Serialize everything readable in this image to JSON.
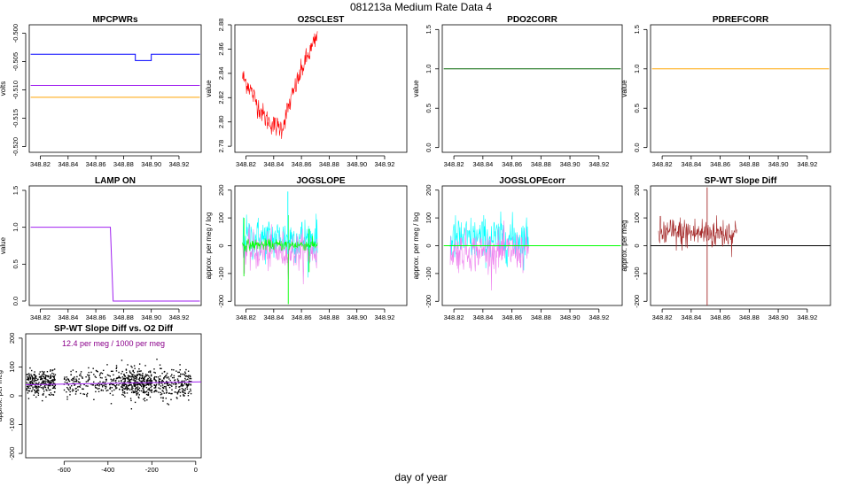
{
  "figure": {
    "title": "081213a   Medium Rate Data 4",
    "xlabel": "day of year"
  },
  "colors": {
    "blue": "#0000ff",
    "purple": "#a020f0",
    "orange": "#ffa500",
    "red": "#ff0000",
    "darkgreen": "#006400",
    "green": "#00ff00",
    "cyan": "#00ffff",
    "violet": "#ee82ee",
    "brown": "#a52a2a",
    "black": "#000000",
    "magenta": "#8b008b"
  },
  "chart_data": [
    {
      "type": "line",
      "title": "MPCPWRs",
      "ylabel": "volts",
      "xlim": [
        348.812,
        348.936
      ],
      "ylim": [
        -0.521,
        -0.4985
      ],
      "xticks": [
        "348.82",
        "348.84",
        "348.86",
        "348.88",
        "348.90",
        "348.92"
      ],
      "yticks": [
        "-0.520",
        "-0.515",
        "-0.510",
        "-0.505",
        "-0.500"
      ],
      "series": [
        {
          "color": "blue",
          "x": [
            348.813,
            348.8885,
            348.8885,
            348.9,
            348.9,
            348.935
          ],
          "y": [
            -0.5037,
            -0.5037,
            -0.5048,
            -0.5048,
            -0.5037,
            -0.5037
          ]
        },
        {
          "color": "purple",
          "x": [
            348.813,
            348.935
          ],
          "y": [
            -0.5092,
            -0.5092
          ]
        },
        {
          "color": "orange",
          "x": [
            348.813,
            348.935
          ],
          "y": [
            -0.5113,
            -0.5113
          ]
        }
      ]
    },
    {
      "type": "line",
      "title": "O2SCLEST",
      "ylabel": "value",
      "xlim": [
        348.812,
        348.936
      ],
      "ylim": [
        2.775,
        2.88
      ],
      "xticks": [
        "348.82",
        "348.84",
        "348.86",
        "348.88",
        "348.90",
        "348.92"
      ],
      "yticks": [
        "2.78",
        "2.80",
        "2.82",
        "2.84",
        "2.86",
        "2.88"
      ],
      "series": [
        {
          "color": "red",
          "noise": 0.0045,
          "x": [
            348.8175,
            348.822,
            348.828,
            348.834,
            348.84,
            348.846,
            348.85,
            348.856,
            348.862,
            348.868,
            348.8715
          ],
          "y": [
            2.837,
            2.83,
            2.815,
            2.803,
            2.797,
            2.795,
            2.81,
            2.83,
            2.848,
            2.862,
            2.87
          ]
        }
      ]
    },
    {
      "type": "line",
      "title": "PDO2CORR",
      "ylabel": "value",
      "xlim": [
        348.812,
        348.936
      ],
      "ylim": [
        -0.06,
        1.56
      ],
      "xticks": [
        "348.82",
        "348.84",
        "348.86",
        "348.88",
        "348.90",
        "348.92"
      ],
      "yticks": [
        "0.0",
        "0.5",
        "1.0",
        "1.5"
      ],
      "series": [
        {
          "color": "darkgreen",
          "x": [
            348.813,
            348.935
          ],
          "y": [
            1.0,
            1.0
          ]
        }
      ]
    },
    {
      "type": "line",
      "title": "PDREFCORR",
      "ylabel": "value",
      "xlim": [
        348.812,
        348.936
      ],
      "ylim": [
        -0.06,
        1.56
      ],
      "xticks": [
        "348.82",
        "348.84",
        "348.86",
        "348.88",
        "348.90",
        "348.92"
      ],
      "yticks": [
        "0.0",
        "0.5",
        "1.0",
        "1.5"
      ],
      "series": [
        {
          "color": "orange",
          "x": [
            348.813,
            348.935
          ],
          "y": [
            1.0,
            1.0
          ]
        }
      ]
    },
    {
      "type": "line",
      "title": "LAMP ON",
      "ylabel": "value",
      "xlim": [
        348.812,
        348.936
      ],
      "ylim": [
        -0.06,
        1.56
      ],
      "xticks": [
        "348.82",
        "348.84",
        "348.86",
        "348.88",
        "348.90",
        "348.92"
      ],
      "yticks": [
        "0.0",
        "0.5",
        "1.0",
        "1.5"
      ],
      "series": [
        {
          "color": "purple",
          "x": [
            348.813,
            348.8705,
            348.8725,
            348.935
          ],
          "y": [
            1.0,
            1.0,
            0.0,
            0.0
          ]
        }
      ]
    },
    {
      "type": "line",
      "title": "JOGSLOPE",
      "ylabel": "approx. per meg / log",
      "xlim": [
        348.812,
        348.936
      ],
      "ylim": [
        -215,
        215
      ],
      "xticks": [
        "348.82",
        "348.84",
        "348.86",
        "348.88",
        "348.90",
        "348.92"
      ],
      "yticks": [
        "-200",
        "-100",
        "0",
        "100",
        "200"
      ],
      "series": [
        {
          "color": "cyan",
          "x": [
            348.8175,
            348.8715
          ],
          "y": [
            25,
            25
          ],
          "noise": 40
        },
        {
          "color": "violet",
          "x": [
            348.8175,
            348.8715
          ],
          "y": [
            -20,
            -20
          ],
          "noise": 35
        },
        {
          "color": "green",
          "x": [
            348.8175,
            348.8715
          ],
          "y": [
            3,
            3
          ],
          "noise": 10
        }
      ],
      "spikes": [
        {
          "color": "green",
          "x": 348.8185,
          "y": [
            -110,
            100
          ]
        },
        {
          "color": "green",
          "x": 348.8505,
          "y": [
            -210,
            110
          ]
        },
        {
          "color": "green",
          "x": 348.8655,
          "y": [
            -95,
            60
          ]
        },
        {
          "color": "cyan",
          "x": 348.8502,
          "y": [
            -30,
            195
          ]
        }
      ]
    },
    {
      "type": "line",
      "title": "JOGSLOPEcorr",
      "ylabel": "approx. per meg / log",
      "xlim": [
        348.812,
        348.936
      ],
      "ylim": [
        -215,
        215
      ],
      "xticks": [
        "348.82",
        "348.84",
        "348.86",
        "348.88",
        "348.90",
        "348.92"
      ],
      "yticks": [
        "-200",
        "-100",
        "0",
        "100",
        "200"
      ],
      "series": [
        {
          "color": "cyan",
          "x": [
            348.8175,
            348.8715
          ],
          "y": [
            25,
            25
          ],
          "noise": 40
        },
        {
          "color": "violet",
          "x": [
            348.8175,
            348.8715
          ],
          "y": [
            -20,
            -20
          ],
          "noise": 35
        },
        {
          "color": "green",
          "x": [
            348.813,
            348.935
          ],
          "y": [
            0,
            0
          ]
        }
      ]
    },
    {
      "type": "line",
      "title": "SP-WT Slope Diff",
      "ylabel": "approx. per meg",
      "xlim": [
        348.812,
        348.936
      ],
      "ylim": [
        -215,
        215
      ],
      "xticks": [
        "348.82",
        "348.84",
        "348.86",
        "348.88",
        "348.90",
        "348.92"
      ],
      "yticks": [
        "-200",
        "-100",
        "0",
        "100",
        "200"
      ],
      "hline": {
        "y": 0,
        "color": "black"
      },
      "series": [
        {
          "color": "brown",
          "x": [
            348.8175,
            348.8715
          ],
          "y": [
            45,
            45
          ],
          "noise": 30
        }
      ],
      "spikes": [
        {
          "color": "brown",
          "x": 348.851,
          "y": [
            -215,
            210
          ]
        }
      ]
    },
    {
      "type": "scatter",
      "title": "SP-WT Slope Diff vs. O2 Diff",
      "ylabel": "approx. per meg",
      "annotation": "12.4 per meg / 1000 per meg",
      "xlim": [
        -775,
        25
      ],
      "ylim": [
        -215,
        215
      ],
      "xticks": [
        "-600",
        "-400",
        "-200",
        "0"
      ],
      "yticks": [
        "-200",
        "-100",
        "0",
        "100",
        "200"
      ],
      "fit": {
        "slope": 0.0124,
        "intercept": 48,
        "color": "purple"
      },
      "clusters": [
        {
          "x": [
            -770,
            -640
          ],
          "y": 45,
          "sd": 22,
          "n": 260
        },
        {
          "x": [
            -600,
            -340
          ],
          "y": 45,
          "sd": 24,
          "n": 210
        },
        {
          "x": [
            -340,
            -200
          ],
          "y": 45,
          "sd": 24,
          "n": 320
        },
        {
          "x": [
            -190,
            -20
          ],
          "y": 45,
          "sd": 24,
          "n": 240
        }
      ]
    }
  ]
}
